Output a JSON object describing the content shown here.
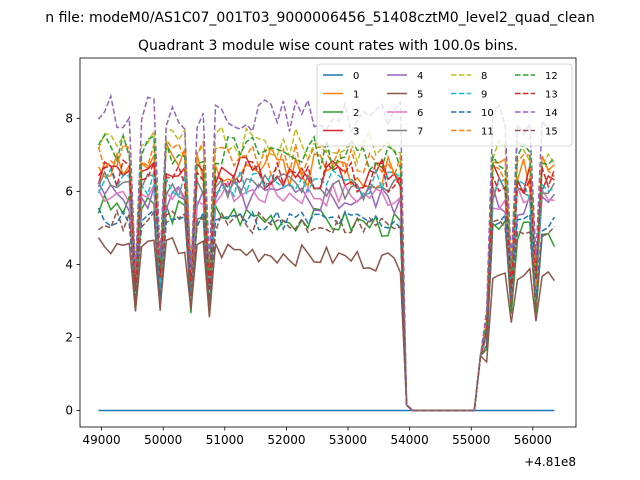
{
  "page": {
    "suptitle": "n file: modeM0/AS1C07_001T03_9000006456_51408cztM0_level2_quad_clean"
  },
  "chart_data": {
    "type": "line",
    "title": "Quadrant 3 module wise count rates with 100.0s bins.",
    "xlabel": "",
    "ylabel": "",
    "x_offset_label": "+4.81e8",
    "xlim": [
      48650,
      56700
    ],
    "ylim": [
      -0.45,
      9.65
    ],
    "x_ticks": [
      49000,
      50000,
      51000,
      52000,
      53000,
      54000,
      55000,
      56000
    ],
    "y_ticks": [
      0,
      2,
      4,
      6,
      8
    ],
    "grid": false,
    "legend": {
      "placement": "top-right",
      "columns": 4
    },
    "x": [
      48950,
      49050,
      49150,
      49250,
      49350,
      49450,
      49550,
      49650,
      49750,
      49850,
      49950,
      50050,
      50150,
      50250,
      50350,
      50450,
      50550,
      50650,
      50750,
      50850,
      50950,
      51050,
      51150,
      51250,
      51350,
      51450,
      51550,
      51650,
      51750,
      51850,
      51950,
      52050,
      52150,
      52250,
      52350,
      52450,
      52550,
      52650,
      52750,
      52850,
      52950,
      53050,
      53150,
      53250,
      53350,
      53450,
      53550,
      53650,
      53750,
      53850,
      53950,
      54050,
      54150,
      54250,
      54350,
      54450,
      54550,
      54650,
      54750,
      54850,
      54950,
      55050,
      55150,
      55250,
      55350,
      55450,
      55550,
      55650,
      55750,
      55850,
      55950,
      56050,
      56150,
      56250,
      56350
    ],
    "series": [
      {
        "name": "0",
        "color": "#1f77b4",
        "dash": "solid",
        "base": 0.0,
        "level": 0.0,
        "dip": 0.0,
        "amp": 0.0,
        "seed": 1
      },
      {
        "name": "1",
        "color": "#ff7f0e",
        "dash": "solid",
        "base": 6.8,
        "level": 6.5,
        "dip": 3.6,
        "amp": 0.55,
        "seed": 2
      },
      {
        "name": "2",
        "color": "#2ca02c",
        "dash": "solid",
        "base": 5.6,
        "level": 4.8,
        "dip": 2.8,
        "amp": 0.35,
        "seed": 3
      },
      {
        "name": "3",
        "color": "#d62728",
        "dash": "solid",
        "base": 6.6,
        "level": 6.4,
        "dip": 3.5,
        "amp": 0.45,
        "seed": 4
      },
      {
        "name": "4",
        "color": "#9467bd",
        "dash": "solid",
        "base": 5.9,
        "level": 5.7,
        "dip": 3.2,
        "amp": 0.45,
        "seed": 5
      },
      {
        "name": "5",
        "color": "#8c564b",
        "dash": "solid",
        "base": 4.6,
        "level": 3.8,
        "dip": 2.6,
        "amp": 0.3,
        "seed": 6
      },
      {
        "name": "6",
        "color": "#e377c2",
        "dash": "solid",
        "base": 6.0,
        "level": 5.8,
        "dip": 3.3,
        "amp": 0.35,
        "seed": 7
      },
      {
        "name": "7",
        "color": "#7f7f7f",
        "dash": "solid",
        "base": 6.2,
        "level": 6.0,
        "dip": 3.4,
        "amp": 0.4,
        "seed": 8
      },
      {
        "name": "8",
        "color": "#bcbd22",
        "dash": "dashed",
        "base": 7.4,
        "level": 7.1,
        "dip": 3.8,
        "amp": 0.45,
        "seed": 9
      },
      {
        "name": "9",
        "color": "#17becf",
        "dash": "dashed",
        "base": 6.3,
        "level": 6.1,
        "dip": 3.4,
        "amp": 0.4,
        "seed": 10
      },
      {
        "name": "10",
        "color": "#1f77b4",
        "dash": "dashed",
        "base": 5.3,
        "level": 5.1,
        "dip": 3.0,
        "amp": 0.3,
        "seed": 11
      },
      {
        "name": "11",
        "color": "#ff7f0e",
        "dash": "dashed",
        "base": 7.0,
        "level": 6.7,
        "dip": 3.6,
        "amp": 0.45,
        "seed": 12
      },
      {
        "name": "12",
        "color": "#2ca02c",
        "dash": "dashed",
        "base": 7.2,
        "level": 6.9,
        "dip": 3.7,
        "amp": 0.45,
        "seed": 13
      },
      {
        "name": "13",
        "color": "#d62728",
        "dash": "dashed",
        "base": 6.5,
        "level": 6.3,
        "dip": 3.5,
        "amp": 0.4,
        "seed": 14
      },
      {
        "name": "14",
        "color": "#9467bd",
        "dash": "dashed",
        "base": 8.2,
        "level": 7.9,
        "dip": 4.0,
        "amp": 0.45,
        "seed": 15
      },
      {
        "name": "15",
        "color": "#8c564b",
        "dash": "dashed",
        "base": 5.2,
        "level": 5.0,
        "dip": 2.9,
        "amp": 0.3,
        "seed": 16
      }
    ]
  }
}
